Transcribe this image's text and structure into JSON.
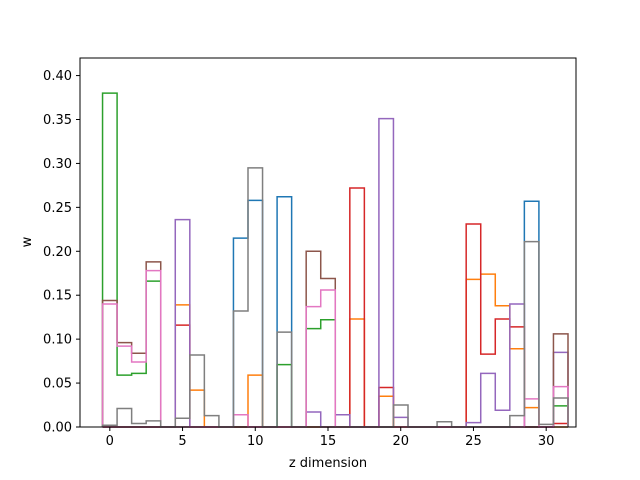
{
  "chart_data": {
    "type": "step",
    "title": "",
    "xlabel": "z dimension",
    "ylabel": "w",
    "xlim": [
      -2.05,
      32.05
    ],
    "ylim": [
      0,
      0.42
    ],
    "x_ticks": [
      0,
      5,
      10,
      15,
      20,
      25,
      30
    ],
    "y_ticks": [
      0.0,
      0.05,
      0.1,
      0.15,
      0.2,
      0.25,
      0.3,
      0.35,
      0.4
    ],
    "y_tick_labels": [
      "0.00",
      "0.05",
      "0.10",
      "0.15",
      "0.20",
      "0.25",
      "0.30",
      "0.35",
      "0.40"
    ],
    "x_range": [
      0,
      31
    ],
    "legend": "none",
    "grid": false,
    "series": [
      {
        "color": "#1f77b4",
        "values": [
          0,
          0,
          0,
          0,
          0,
          0,
          0,
          0,
          0,
          0.215,
          0.258,
          0,
          0.262,
          0,
          0,
          0,
          0,
          0,
          0,
          0,
          0,
          0,
          0,
          0,
          0,
          0,
          0,
          0,
          0,
          0.257,
          0,
          0
        ]
      },
      {
        "color": "#ff7f0e",
        "values": [
          0,
          0,
          0,
          0,
          0,
          0.139,
          0.042,
          0,
          0,
          0,
          0.059,
          0,
          0,
          0,
          0,
          0,
          0,
          0.123,
          0,
          0.035,
          0,
          0,
          0,
          0,
          0,
          0.168,
          0.174,
          0.138,
          0.089,
          0.022,
          0,
          0
        ]
      },
      {
        "color": "#2ca02c",
        "values": [
          0.38,
          0.059,
          0.061,
          0.166,
          0,
          0,
          0,
          0,
          0,
          0,
          0,
          0,
          0.071,
          0,
          0.112,
          0.122,
          0,
          0,
          0,
          0,
          0,
          0,
          0,
          0,
          0,
          0,
          0,
          0,
          0,
          0,
          0,
          0.024
        ]
      },
      {
        "color": "#d62728",
        "values": [
          0,
          0,
          0,
          0,
          0,
          0.116,
          0,
          0,
          0,
          0,
          0,
          0,
          0,
          0,
          0,
          0,
          0,
          0.272,
          0,
          0.045,
          0,
          0,
          0,
          0,
          0,
          0.231,
          0.083,
          0.123,
          0.114,
          0,
          0,
          0.004
        ]
      },
      {
        "color": "#9467bd",
        "values": [
          0,
          0,
          0,
          0,
          0,
          0.236,
          0,
          0,
          0,
          0,
          0,
          0,
          0,
          0,
          0.017,
          0,
          0.014,
          0,
          0,
          0.351,
          0.011,
          0,
          0,
          0,
          0,
          0.005,
          0.061,
          0.019,
          0.14,
          0,
          0,
          0.085
        ]
      },
      {
        "color": "#8c564b",
        "values": [
          0.144,
          0.096,
          0.084,
          0.188,
          0,
          0,
          0,
          0,
          0,
          0,
          0,
          0,
          0,
          0,
          0.2,
          0.169,
          0,
          0,
          0,
          0,
          0,
          0,
          0,
          0,
          0,
          0,
          0,
          0,
          0,
          0,
          0,
          0.106
        ]
      },
      {
        "color": "#e377c2",
        "values": [
          0.14,
          0.092,
          0.074,
          0.178,
          0,
          0,
          0,
          0,
          0,
          0.014,
          0,
          0,
          0,
          0,
          0.137,
          0.156,
          0,
          0,
          0,
          0,
          0,
          0,
          0,
          0,
          0,
          0,
          0,
          0,
          0,
          0.032,
          0,
          0.046
        ]
      },
      {
        "color": "#7f7f7f",
        "values": [
          0.002,
          0.021,
          0.004,
          0.007,
          0,
          0.01,
          0.082,
          0.013,
          0,
          0.132,
          0.295,
          0,
          0.108,
          0,
          0,
          0,
          0,
          0,
          0,
          0,
          0.025,
          0,
          0,
          0.006,
          0,
          0,
          0,
          0,
          0.013,
          0.211,
          0.003,
          0.033
        ]
      }
    ]
  }
}
